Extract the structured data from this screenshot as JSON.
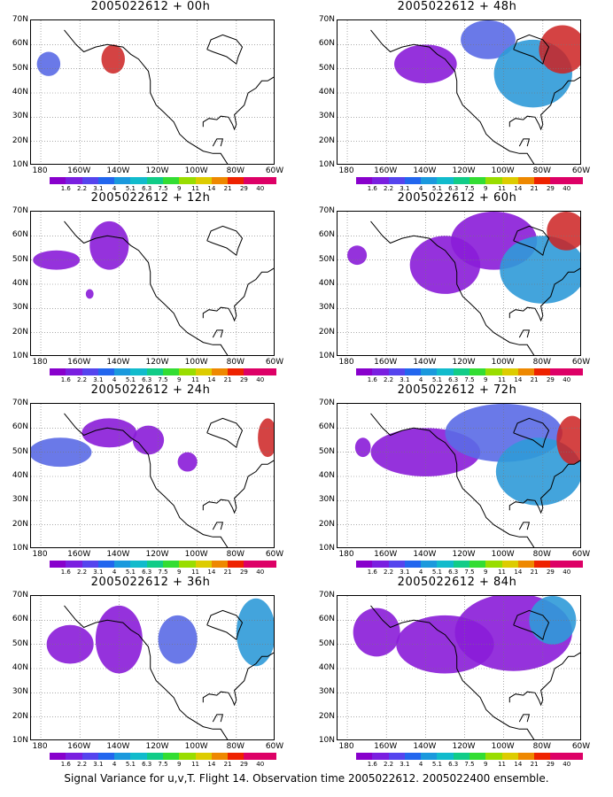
{
  "panels": [
    {
      "title": "2005022612 + 00h",
      "blobs": [
        [
          "-176",
          "52",
          "6",
          "5",
          2
        ],
        [
          "-143",
          "54",
          "6",
          "6",
          4
        ]
      ]
    },
    {
      "title": "2005022612 + 48h",
      "blobs": [
        [
          "-140",
          "52",
          "16",
          "8",
          1
        ],
        [
          "-108",
          "62",
          "14",
          "8",
          2
        ],
        [
          "-85",
          "48",
          "20",
          "14",
          3
        ],
        [
          "-70",
          "58",
          "12",
          "10",
          4
        ]
      ]
    },
    {
      "title": "2005022612 + 12h",
      "blobs": [
        [
          "-172",
          "50",
          "12",
          "4",
          1
        ],
        [
          "-145",
          "56",
          "10",
          "10",
          1
        ],
        [
          "-155",
          "36",
          "2",
          "2",
          1
        ]
      ]
    },
    {
      "title": "2005022612 + 60h",
      "blobs": [
        [
          "-175",
          "52",
          "5",
          "4",
          1
        ],
        [
          "-130",
          "48",
          "18",
          "12",
          1
        ],
        [
          "-105",
          "58",
          "22",
          "12",
          1
        ],
        [
          "-80",
          "46",
          "22",
          "14",
          3
        ],
        [
          "-68",
          "62",
          "10",
          "8",
          4
        ]
      ]
    },
    {
      "title": "2005022612 + 24h",
      "blobs": [
        [
          "-170",
          "50",
          "16",
          "6",
          2
        ],
        [
          "-145",
          "58",
          "14",
          "6",
          1
        ],
        [
          "-125",
          "55",
          "8",
          "6",
          1
        ],
        [
          "-105",
          "46",
          "5",
          "4",
          1
        ],
        [
          "-64",
          "56",
          "5",
          "8",
          4
        ]
      ]
    },
    {
      "title": "2005022612 + 72h",
      "blobs": [
        [
          "-172",
          "52",
          "4",
          "4",
          1
        ],
        [
          "-140",
          "50",
          "28",
          "10",
          1
        ],
        [
          "-100",
          "58",
          "30",
          "12",
          2
        ],
        [
          "-82",
          "42",
          "22",
          "14",
          3
        ],
        [
          "-65",
          "55",
          "8",
          "10",
          4
        ]
      ]
    },
    {
      "title": "2005022612 + 36h",
      "blobs": [
        [
          "-165",
          "50",
          "12",
          "8",
          1
        ],
        [
          "-140",
          "52",
          "12",
          "14",
          1
        ],
        [
          "-110",
          "52",
          "10",
          "10",
          2
        ],
        [
          "-70",
          "55",
          "10",
          "14",
          3
        ]
      ]
    },
    {
      "title": "2005022612 + 84h",
      "blobs": [
        [
          "-165",
          "55",
          "12",
          "10",
          1
        ],
        [
          "-130",
          "50",
          "25",
          "12",
          1
        ],
        [
          "-95",
          "55",
          "30",
          "16",
          1
        ],
        [
          "-75",
          "60",
          "12",
          "10",
          3
        ]
      ]
    }
  ],
  "ylabels": [
    "70N",
    "60N",
    "50N",
    "40N",
    "30N",
    "20N",
    "10N"
  ],
  "xlabels": [
    "180",
    "160W",
    "140W",
    "120W",
    "100W",
    "80W",
    "60W"
  ],
  "colorbar": {
    "labels": [
      "1.6",
      "2.2",
      "3.1",
      "4",
      "5.1",
      "6.3",
      "7.5",
      "9",
      "11",
      "14",
      "21",
      "29",
      "40"
    ],
    "colors": [
      "#8800cc",
      "#7a1fe0",
      "#5544ee",
      "#2266ee",
      "#1a99dd",
      "#11bbcc",
      "#11cc88",
      "#33dd33",
      "#99dd00",
      "#ddcc00",
      "#ee8800",
      "#ee2200",
      "#dd0066"
    ]
  },
  "caption": "Signal Variance for u,v,T. Flight 14. Observation time 2005022612. 2005022400 ensemble.",
  "blob_colors": [
    "#9a2ae6",
    "#8a1cd8",
    "#5a6ae6",
    "#2f9ad8",
    "#cc2222"
  ]
}
